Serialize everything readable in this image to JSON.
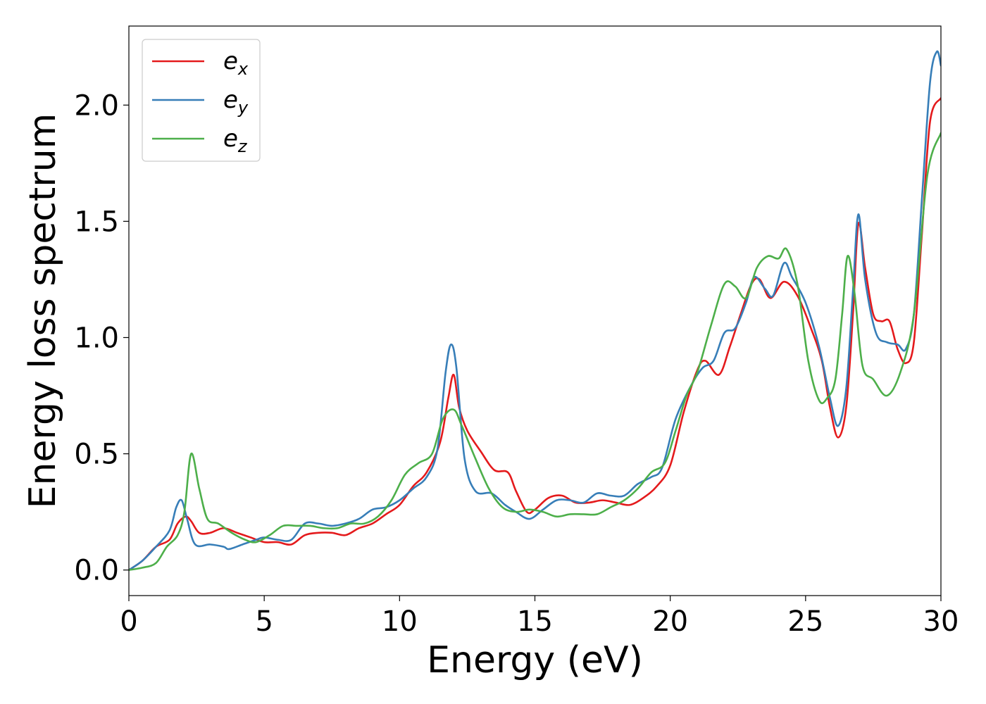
{
  "chart_data": {
    "type": "line",
    "title": "",
    "xlabel": "Energy (eV)",
    "ylabel": "Energy loss spectrum",
    "xlim": [
      0,
      30
    ],
    "ylim": [
      -0.11,
      2.34
    ],
    "xticks": [
      "0",
      "5",
      "10",
      "15",
      "20",
      "25",
      "30"
    ],
    "yticks": [
      "0.0",
      "0.5",
      "1.0",
      "1.5",
      "2.0"
    ],
    "grid": false,
    "legend_position": "top-left",
    "series": [
      {
        "name": "e_x",
        "legend_base": "e",
        "legend_sub": "x",
        "color": "#e41a1c",
        "points": [
          [
            0,
            0
          ],
          [
            0.5,
            0.04
          ],
          [
            1,
            0.1
          ],
          [
            1.5,
            0.13
          ],
          [
            1.8,
            0.2
          ],
          [
            2.1,
            0.23
          ],
          [
            2.3,
            0.21
          ],
          [
            2.6,
            0.16
          ],
          [
            3,
            0.16
          ],
          [
            3.5,
            0.18
          ],
          [
            4,
            0.16
          ],
          [
            4.5,
            0.14
          ],
          [
            5,
            0.12
          ],
          [
            5.5,
            0.12
          ],
          [
            6,
            0.11
          ],
          [
            6.5,
            0.15
          ],
          [
            7,
            0.16
          ],
          [
            7.5,
            0.16
          ],
          [
            8,
            0.15
          ],
          [
            8.5,
            0.18
          ],
          [
            9,
            0.2
          ],
          [
            9.5,
            0.24
          ],
          [
            10,
            0.28
          ],
          [
            10.5,
            0.36
          ],
          [
            11,
            0.42
          ],
          [
            11.5,
            0.55
          ],
          [
            11.8,
            0.74
          ],
          [
            12,
            0.84
          ],
          [
            12.2,
            0.7
          ],
          [
            12.5,
            0.6
          ],
          [
            13,
            0.51
          ],
          [
            13.5,
            0.43
          ],
          [
            14,
            0.42
          ],
          [
            14.3,
            0.34
          ],
          [
            14.7,
            0.25
          ],
          [
            15,
            0.26
          ],
          [
            15.5,
            0.31
          ],
          [
            16,
            0.32
          ],
          [
            16.5,
            0.29
          ],
          [
            17,
            0.29
          ],
          [
            17.5,
            0.3
          ],
          [
            18,
            0.29
          ],
          [
            18.5,
            0.28
          ],
          [
            19,
            0.31
          ],
          [
            19.5,
            0.36
          ],
          [
            20,
            0.45
          ],
          [
            20.5,
            0.68
          ],
          [
            21,
            0.86
          ],
          [
            21.3,
            0.9
          ],
          [
            21.8,
            0.84
          ],
          [
            22.2,
            0.96
          ],
          [
            22.6,
            1.1
          ],
          [
            23,
            1.23
          ],
          [
            23.3,
            1.25
          ],
          [
            23.7,
            1.17
          ],
          [
            24.2,
            1.24
          ],
          [
            24.7,
            1.18
          ],
          [
            25.2,
            1.04
          ],
          [
            25.6,
            0.9
          ],
          [
            25.9,
            0.7
          ],
          [
            26.2,
            0.57
          ],
          [
            26.5,
            0.7
          ],
          [
            26.75,
            1.1
          ],
          [
            26.95,
            1.49
          ],
          [
            27.2,
            1.3
          ],
          [
            27.5,
            1.1
          ],
          [
            27.8,
            1.07
          ],
          [
            28.1,
            1.07
          ],
          [
            28.4,
            0.95
          ],
          [
            28.7,
            0.89
          ],
          [
            29,
            0.98
          ],
          [
            29.3,
            1.45
          ],
          [
            29.6,
            1.93
          ],
          [
            30,
            2.03
          ]
        ]
      },
      {
        "name": "e_y",
        "legend_base": "e",
        "legend_sub": "y",
        "color": "#377eb8",
        "points": [
          [
            0,
            0
          ],
          [
            0.5,
            0.04
          ],
          [
            1,
            0.1
          ],
          [
            1.5,
            0.17
          ],
          [
            1.75,
            0.27
          ],
          [
            1.95,
            0.3
          ],
          [
            2.15,
            0.22
          ],
          [
            2.45,
            0.11
          ],
          [
            3,
            0.11
          ],
          [
            3.5,
            0.1
          ],
          [
            3.7,
            0.09
          ],
          [
            4.2,
            0.11
          ],
          [
            4.7,
            0.13
          ],
          [
            5,
            0.14
          ],
          [
            5.5,
            0.13
          ],
          [
            6,
            0.13
          ],
          [
            6.5,
            0.2
          ],
          [
            7,
            0.2
          ],
          [
            7.5,
            0.19
          ],
          [
            8,
            0.2
          ],
          [
            8.5,
            0.22
          ],
          [
            9,
            0.26
          ],
          [
            9.5,
            0.27
          ],
          [
            10,
            0.3
          ],
          [
            10.5,
            0.35
          ],
          [
            11,
            0.4
          ],
          [
            11.4,
            0.52
          ],
          [
            11.7,
            0.85
          ],
          [
            11.9,
            0.97
          ],
          [
            12.1,
            0.87
          ],
          [
            12.4,
            0.48
          ],
          [
            12.8,
            0.34
          ],
          [
            13.4,
            0.33
          ],
          [
            13.9,
            0.28
          ],
          [
            14.3,
            0.25
          ],
          [
            14.8,
            0.22
          ],
          [
            15.3,
            0.26
          ],
          [
            15.8,
            0.3
          ],
          [
            16.3,
            0.3
          ],
          [
            16.8,
            0.29
          ],
          [
            17.3,
            0.33
          ],
          [
            17.8,
            0.32
          ],
          [
            18.3,
            0.32
          ],
          [
            18.8,
            0.37
          ],
          [
            19.3,
            0.4
          ],
          [
            19.7,
            0.44
          ],
          [
            20.2,
            0.65
          ],
          [
            20.8,
            0.8
          ],
          [
            21.2,
            0.87
          ],
          [
            21.6,
            0.9
          ],
          [
            22,
            1.02
          ],
          [
            22.4,
            1.04
          ],
          [
            22.8,
            1.15
          ],
          [
            23.1,
            1.26
          ],
          [
            23.5,
            1.21
          ],
          [
            23.8,
            1.18
          ],
          [
            24.2,
            1.32
          ],
          [
            24.5,
            1.26
          ],
          [
            25,
            1.15
          ],
          [
            25.5,
            0.96
          ],
          [
            25.9,
            0.74
          ],
          [
            26.2,
            0.62
          ],
          [
            26.5,
            0.78
          ],
          [
            26.75,
            1.2
          ],
          [
            26.95,
            1.53
          ],
          [
            27.2,
            1.25
          ],
          [
            27.6,
            1.02
          ],
          [
            28,
            0.98
          ],
          [
            28.4,
            0.97
          ],
          [
            28.7,
            0.95
          ],
          [
            29,
            1.1
          ],
          [
            29.3,
            1.6
          ],
          [
            29.6,
            2.1
          ],
          [
            29.85,
            2.23
          ],
          [
            30,
            2.17
          ]
        ]
      },
      {
        "name": "e_z",
        "legend_base": "e",
        "legend_sub": "z",
        "color": "#4daf4a",
        "points": [
          [
            0,
            0
          ],
          [
            0.5,
            0.01
          ],
          [
            1,
            0.03
          ],
          [
            1.4,
            0.1
          ],
          [
            1.8,
            0.15
          ],
          [
            2.05,
            0.25
          ],
          [
            2.3,
            0.5
          ],
          [
            2.6,
            0.35
          ],
          [
            2.9,
            0.22
          ],
          [
            3.3,
            0.2
          ],
          [
            3.8,
            0.16
          ],
          [
            4.3,
            0.13
          ],
          [
            4.7,
            0.12
          ],
          [
            5.2,
            0.15
          ],
          [
            5.7,
            0.19
          ],
          [
            6.2,
            0.19
          ],
          [
            6.7,
            0.19
          ],
          [
            7.2,
            0.18
          ],
          [
            7.7,
            0.18
          ],
          [
            8.2,
            0.2
          ],
          [
            8.7,
            0.2
          ],
          [
            9.2,
            0.23
          ],
          [
            9.7,
            0.3
          ],
          [
            10.2,
            0.41
          ],
          [
            10.7,
            0.46
          ],
          [
            11.2,
            0.5
          ],
          [
            11.6,
            0.65
          ],
          [
            12,
            0.69
          ],
          [
            12.3,
            0.62
          ],
          [
            12.8,
            0.48
          ],
          [
            13.3,
            0.35
          ],
          [
            13.8,
            0.27
          ],
          [
            14.3,
            0.25
          ],
          [
            14.8,
            0.26
          ],
          [
            15.3,
            0.25
          ],
          [
            15.8,
            0.23
          ],
          [
            16.3,
            0.24
          ],
          [
            16.8,
            0.24
          ],
          [
            17.3,
            0.24
          ],
          [
            17.8,
            0.27
          ],
          [
            18.3,
            0.3
          ],
          [
            18.8,
            0.35
          ],
          [
            19.3,
            0.42
          ],
          [
            19.8,
            0.46
          ],
          [
            20.2,
            0.6
          ],
          [
            20.6,
            0.75
          ],
          [
            21,
            0.85
          ],
          [
            21.5,
            1.05
          ],
          [
            22,
            1.23
          ],
          [
            22.4,
            1.22
          ],
          [
            22.8,
            1.17
          ],
          [
            23.2,
            1.3
          ],
          [
            23.6,
            1.35
          ],
          [
            24,
            1.34
          ],
          [
            24.3,
            1.38
          ],
          [
            24.7,
            1.23
          ],
          [
            25.1,
            0.9
          ],
          [
            25.5,
            0.73
          ],
          [
            25.8,
            0.74
          ],
          [
            26.1,
            0.82
          ],
          [
            26.35,
            1.1
          ],
          [
            26.55,
            1.35
          ],
          [
            26.8,
            1.2
          ],
          [
            27.1,
            0.88
          ],
          [
            27.5,
            0.82
          ],
          [
            28,
            0.75
          ],
          [
            28.5,
            0.85
          ],
          [
            29,
            1.1
          ],
          [
            29.5,
            1.7
          ],
          [
            30,
            1.88
          ]
        ]
      }
    ]
  }
}
